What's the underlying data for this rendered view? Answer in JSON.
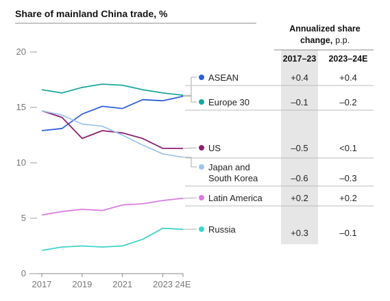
{
  "chart_data": {
    "type": "line",
    "title": "Share of mainland China trade, %",
    "ylim": [
      0,
      20
    ],
    "yticks": [
      0,
      5,
      10,
      15,
      20
    ],
    "x": [
      "2017",
      "2018",
      "2019",
      "2020",
      "2021",
      "2022",
      "2023",
      "24E"
    ],
    "xtick_labels": [
      "2017",
      "2019",
      "2021",
      "2023",
      "24E"
    ],
    "grid": false,
    "series": [
      {
        "name": "ASEAN",
        "color": "#2e5fd6",
        "values": [
          12.9,
          13.1,
          14.4,
          15.1,
          14.9,
          15.7,
          15.6,
          16.0
        ]
      },
      {
        "name": "Europe 30",
        "color": "#1aa69b",
        "values": [
          16.6,
          16.3,
          16.8,
          17.1,
          17.0,
          16.6,
          16.3,
          16.1
        ]
      },
      {
        "name": "US",
        "color": "#8b1f6e",
        "values": [
          14.7,
          14.1,
          12.2,
          12.9,
          12.7,
          12.2,
          11.3,
          11.3
        ]
      },
      {
        "name": "Japan and South Korea",
        "label_lines": [
          "Japan and",
          "South Korea"
        ],
        "color": "#9fc4ec",
        "values": [
          14.7,
          14.3,
          13.5,
          13.3,
          12.5,
          11.6,
          10.8,
          10.5
        ]
      },
      {
        "name": "Latin America",
        "color": "#d97be0",
        "values": [
          5.3,
          5.6,
          5.8,
          5.7,
          6.2,
          6.3,
          6.6,
          6.8
        ]
      },
      {
        "name": "Russia",
        "color": "#3fd3cc",
        "values": [
          2.1,
          2.4,
          2.5,
          2.4,
          2.5,
          3.1,
          4.1,
          4.0
        ]
      }
    ],
    "table": {
      "header_line1": "Annualized share",
      "header_line2_bold": "change,",
      "header_line2_unit": "p.p.",
      "columns": [
        "2017–23",
        "2023–24E"
      ],
      "rows": [
        {
          "name": "ASEAN",
          "values": [
            "+0.4",
            "+0.4"
          ]
        },
        {
          "name": "Europe 30",
          "values": [
            "–0.1",
            "–0.2"
          ]
        },
        {
          "name": "US",
          "values": [
            "–0.5",
            "<0.1"
          ]
        },
        {
          "name": "Japan and South Korea",
          "values": [
            "–0.6",
            "–0.3"
          ]
        },
        {
          "name": "Latin America",
          "values": [
            "+0.2",
            "+0.2"
          ]
        },
        {
          "name": "Russia",
          "values": [
            "+0.3",
            "–0.1"
          ]
        }
      ]
    }
  }
}
